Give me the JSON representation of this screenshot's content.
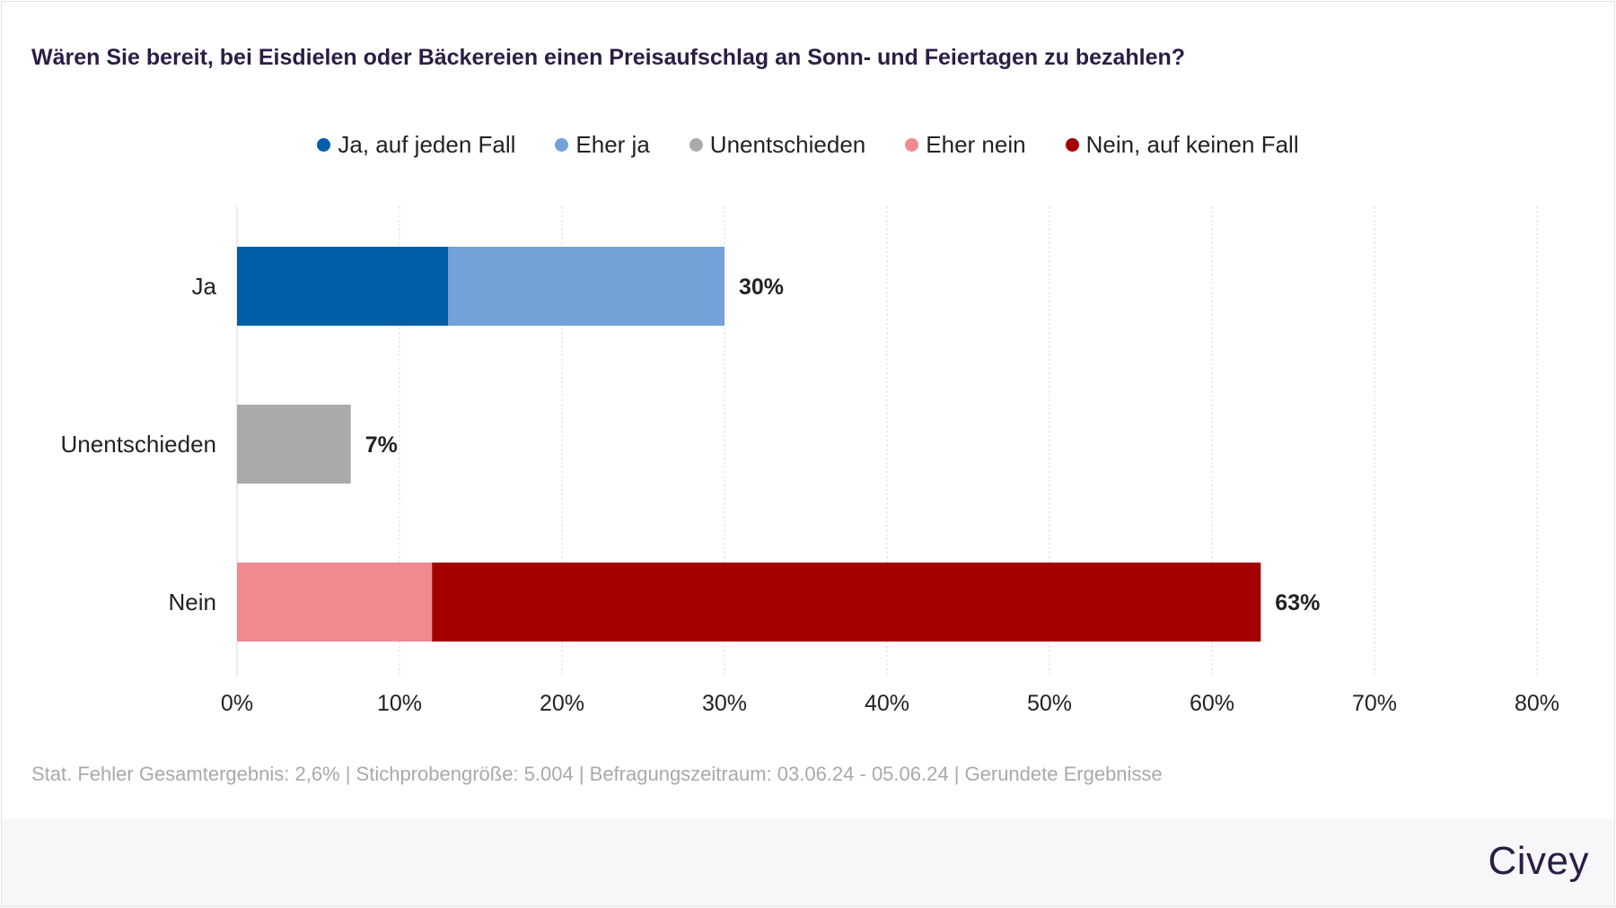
{
  "title": "Wären Sie bereit, bei Eisdielen oder Bäckereien einen Preisaufschlag an Sonn- und Feiertagen zu bezahlen?",
  "legend": [
    {
      "label": "Ja, auf jeden Fall",
      "color": "#005ea8"
    },
    {
      "label": "Eher ja",
      "color": "#72a2d8"
    },
    {
      "label": "Unentschieden",
      "color": "#aaaaaa"
    },
    {
      "label": "Eher nein",
      "color": "#ef8a91"
    },
    {
      "label": "Nein, auf keinen Fall",
      "color": "#a50000"
    }
  ],
  "chart_data": {
    "type": "bar",
    "orientation": "horizontal",
    "stacked": true,
    "categories": [
      "Ja",
      "Unentschieden",
      "Nein"
    ],
    "series": [
      {
        "name": "Ja, auf jeden Fall",
        "color": "#005ea8",
        "values": [
          13,
          0,
          0
        ]
      },
      {
        "name": "Eher ja",
        "color": "#72a2d8",
        "values": [
          17,
          0,
          0
        ]
      },
      {
        "name": "Unentschieden",
        "color": "#aaaaaa",
        "values": [
          0,
          7,
          0
        ]
      },
      {
        "name": "Eher nein",
        "color": "#ef8a91",
        "values": [
          0,
          0,
          12
        ]
      },
      {
        "name": "Nein, auf keinen Fall",
        "color": "#a50000",
        "values": [
          0,
          0,
          51
        ]
      }
    ],
    "totals": [
      "30%",
      "7%",
      "63%"
    ],
    "x_ticks": [
      "0%",
      "10%",
      "20%",
      "30%",
      "40%",
      "50%",
      "60%",
      "70%",
      "80%"
    ],
    "xlim": [
      0,
      80
    ],
    "grid": true,
    "legend_position": "top"
  },
  "footnote": "Stat. Fehler Gesamtergebnis: 2,6% | Stichprobengröße: 5.004 | Befragungszeitraum: 03.06.24 - 05.06.24 | Gerundete Ergebnisse",
  "brand": "Civey"
}
